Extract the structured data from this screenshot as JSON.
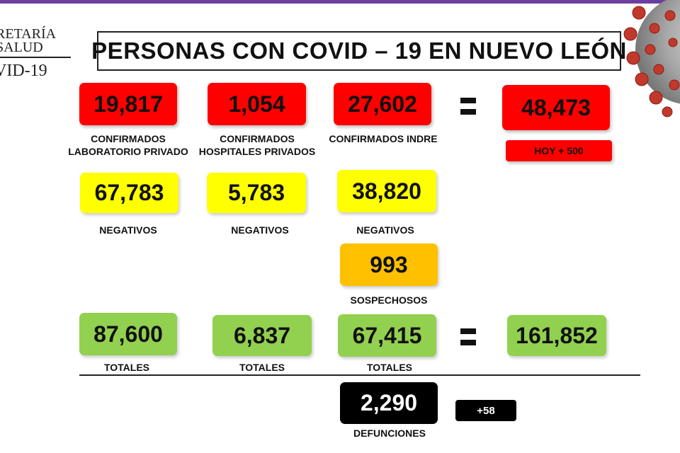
{
  "header": {
    "logo_line1": "RETARÍA",
    "logo_line2": "SALUD",
    "logo_line3": "VID-19",
    "title": "PERSONAS CON COVID – 19 EN NUEVO LEÓN"
  },
  "confirmed": {
    "lab_privado": {
      "value": "19,817",
      "label_l1": "CONFIRMADOS",
      "label_l2": "LABORATORIO PRIVADO"
    },
    "hosp_privados": {
      "value": "1,054",
      "label_l1": "CONFIRMADOS",
      "label_l2": "HOSPITALES PRIVADOS"
    },
    "indre": {
      "value": "27,602",
      "label_l1": "CONFIRMADOS INDRE"
    },
    "total": {
      "value": "48,473",
      "badge": "HOY + 500"
    }
  },
  "negatives": {
    "col1": {
      "value": "67,783",
      "label": "NEGATIVOS"
    },
    "col2": {
      "value": "5,783",
      "label": "NEGATIVOS"
    },
    "col3": {
      "value": "38,820",
      "label": "NEGATIVOS"
    }
  },
  "suspects": {
    "value": "993",
    "label": "SOSPECHOSOS"
  },
  "totals": {
    "col1": {
      "value": "87,600",
      "label": "TOTALES"
    },
    "col2": {
      "value": "6,837",
      "label": "TOTALES"
    },
    "col3": {
      "value": "67,415",
      "label": "TOTALES"
    },
    "grand": {
      "value": "161,852"
    }
  },
  "deaths": {
    "value": "2,290",
    "label": "DEFUNCIONES",
    "delta": "+58"
  },
  "colors": {
    "red": "#ff0000",
    "yellow": "#ffff00",
    "orange": "#ffc000",
    "green": "#92d050",
    "black": "#000000",
    "accent_bar": "#6b3fa0"
  },
  "icons": [
    "virus-icon",
    "equals-icon"
  ]
}
